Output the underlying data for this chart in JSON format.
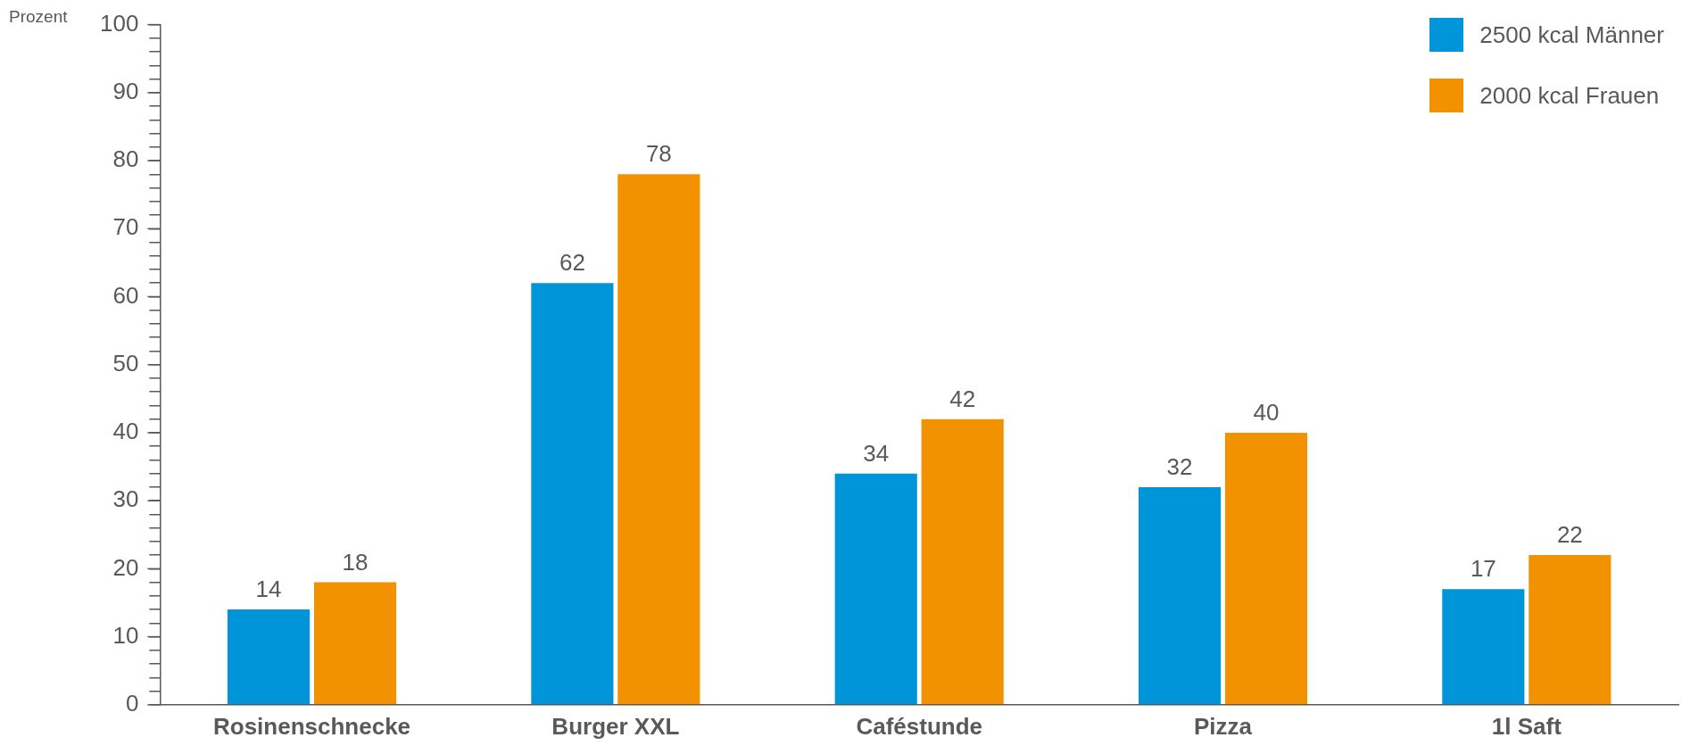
{
  "chart_data": {
    "type": "bar",
    "ylabel": "Prozent",
    "categories": [
      "Rosinenschnecke",
      "Burger XXL",
      "Caféstunde",
      "Pizza",
      "1l Saft"
    ],
    "series": [
      {
        "name": "2500 kcal Männer",
        "color": "#0095d9",
        "values": [
          14,
          62,
          34,
          32,
          17
        ]
      },
      {
        "name": "2000 kcal Frauen",
        "color": "#f39200",
        "values": [
          18,
          78,
          42,
          40,
          22
        ]
      }
    ],
    "ylim": [
      0,
      100
    ],
    "yticks": [
      0,
      {
        "value": 2,
        "label": null
      },
      {
        "value": 4,
        "label": null
      },
      {
        "value": 6,
        "label": null
      },
      {
        "value": 8,
        "label": null
      },
      10,
      {
        "value": 12,
        "label": null
      },
      {
        "value": 14,
        "label": null
      },
      {
        "value": 16,
        "label": null
      },
      {
        "value": 18,
        "label": null
      },
      20,
      {
        "value": 22,
        "label": null
      },
      {
        "value": 24,
        "label": null
      },
      {
        "value": 26,
        "label": null
      },
      {
        "value": 28,
        "label": null
      },
      30,
      {
        "value": 32,
        "label": null
      },
      {
        "value": 34,
        "label": null
      },
      {
        "value": 36,
        "label": null
      },
      {
        "value": 38,
        "label": null
      },
      40,
      {
        "value": 42,
        "label": null
      },
      {
        "value": 44,
        "label": null
      },
      {
        "value": 46,
        "label": null
      },
      {
        "value": 48,
        "label": null
      },
      50,
      {
        "value": 52,
        "label": null
      },
      {
        "value": 54,
        "label": null
      },
      {
        "value": 56,
        "label": null
      },
      {
        "value": 58,
        "label": null
      },
      60,
      {
        "value": 62,
        "label": null
      },
      {
        "value": 64,
        "label": null
      },
      {
        "value": 66,
        "label": null
      },
      {
        "value": 68,
        "label": null
      },
      70,
      {
        "value": 72,
        "label": null
      },
      {
        "value": 74,
        "label": null
      },
      {
        "value": 76,
        "label": null
      },
      {
        "value": 78,
        "label": null
      },
      80,
      {
        "value": 82,
        "label": null
      },
      {
        "value": 84,
        "label": null
      },
      {
        "value": 86,
        "label": null
      },
      {
        "value": 88,
        "label": null
      },
      90,
      {
        "value": 92,
        "label": null
      },
      {
        "value": 94,
        "label": null
      },
      {
        "value": 96,
        "label": null
      },
      {
        "value": 98,
        "label": null
      },
      100
    ],
    "grid": false,
    "legend": "top right",
    "data_labels": true
  }
}
